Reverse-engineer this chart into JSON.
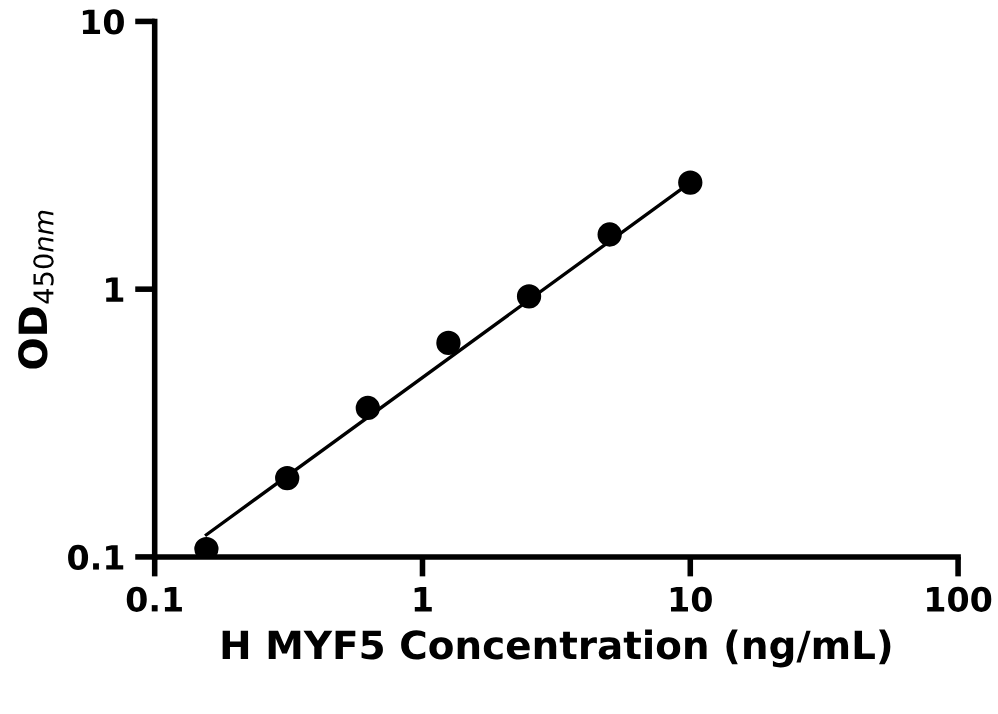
{
  "chart_data": {
    "type": "scatter",
    "xlabel": "H MYF5 Concentration (ng/mL)",
    "ylabel": "OD$_{450nm}$",
    "log": "xy",
    "x": [
      0.156,
      0.3125,
      0.625,
      1.25,
      2.5,
      5,
      10
    ],
    "series": [
      {
        "marker": "circle",
        "color": "#000000",
        "values": [
          0.107,
          0.197,
          0.36,
          0.63,
          0.94,
          1.6,
          2.5
        ]
      },
      {
        "type": "line",
        "color": "#000000",
        "x": [
          0.156,
          10
        ],
        "values": [
          0.121,
          2.5
        ]
      }
    ],
    "xlim": [
      0.1,
      100
    ],
    "ylim": [
      0.1,
      10
    ],
    "xticks": [
      0.1,
      1,
      10,
      100
    ],
    "yticks": [
      0.1,
      1,
      10
    ],
    "grid": false,
    "legend": false
  }
}
